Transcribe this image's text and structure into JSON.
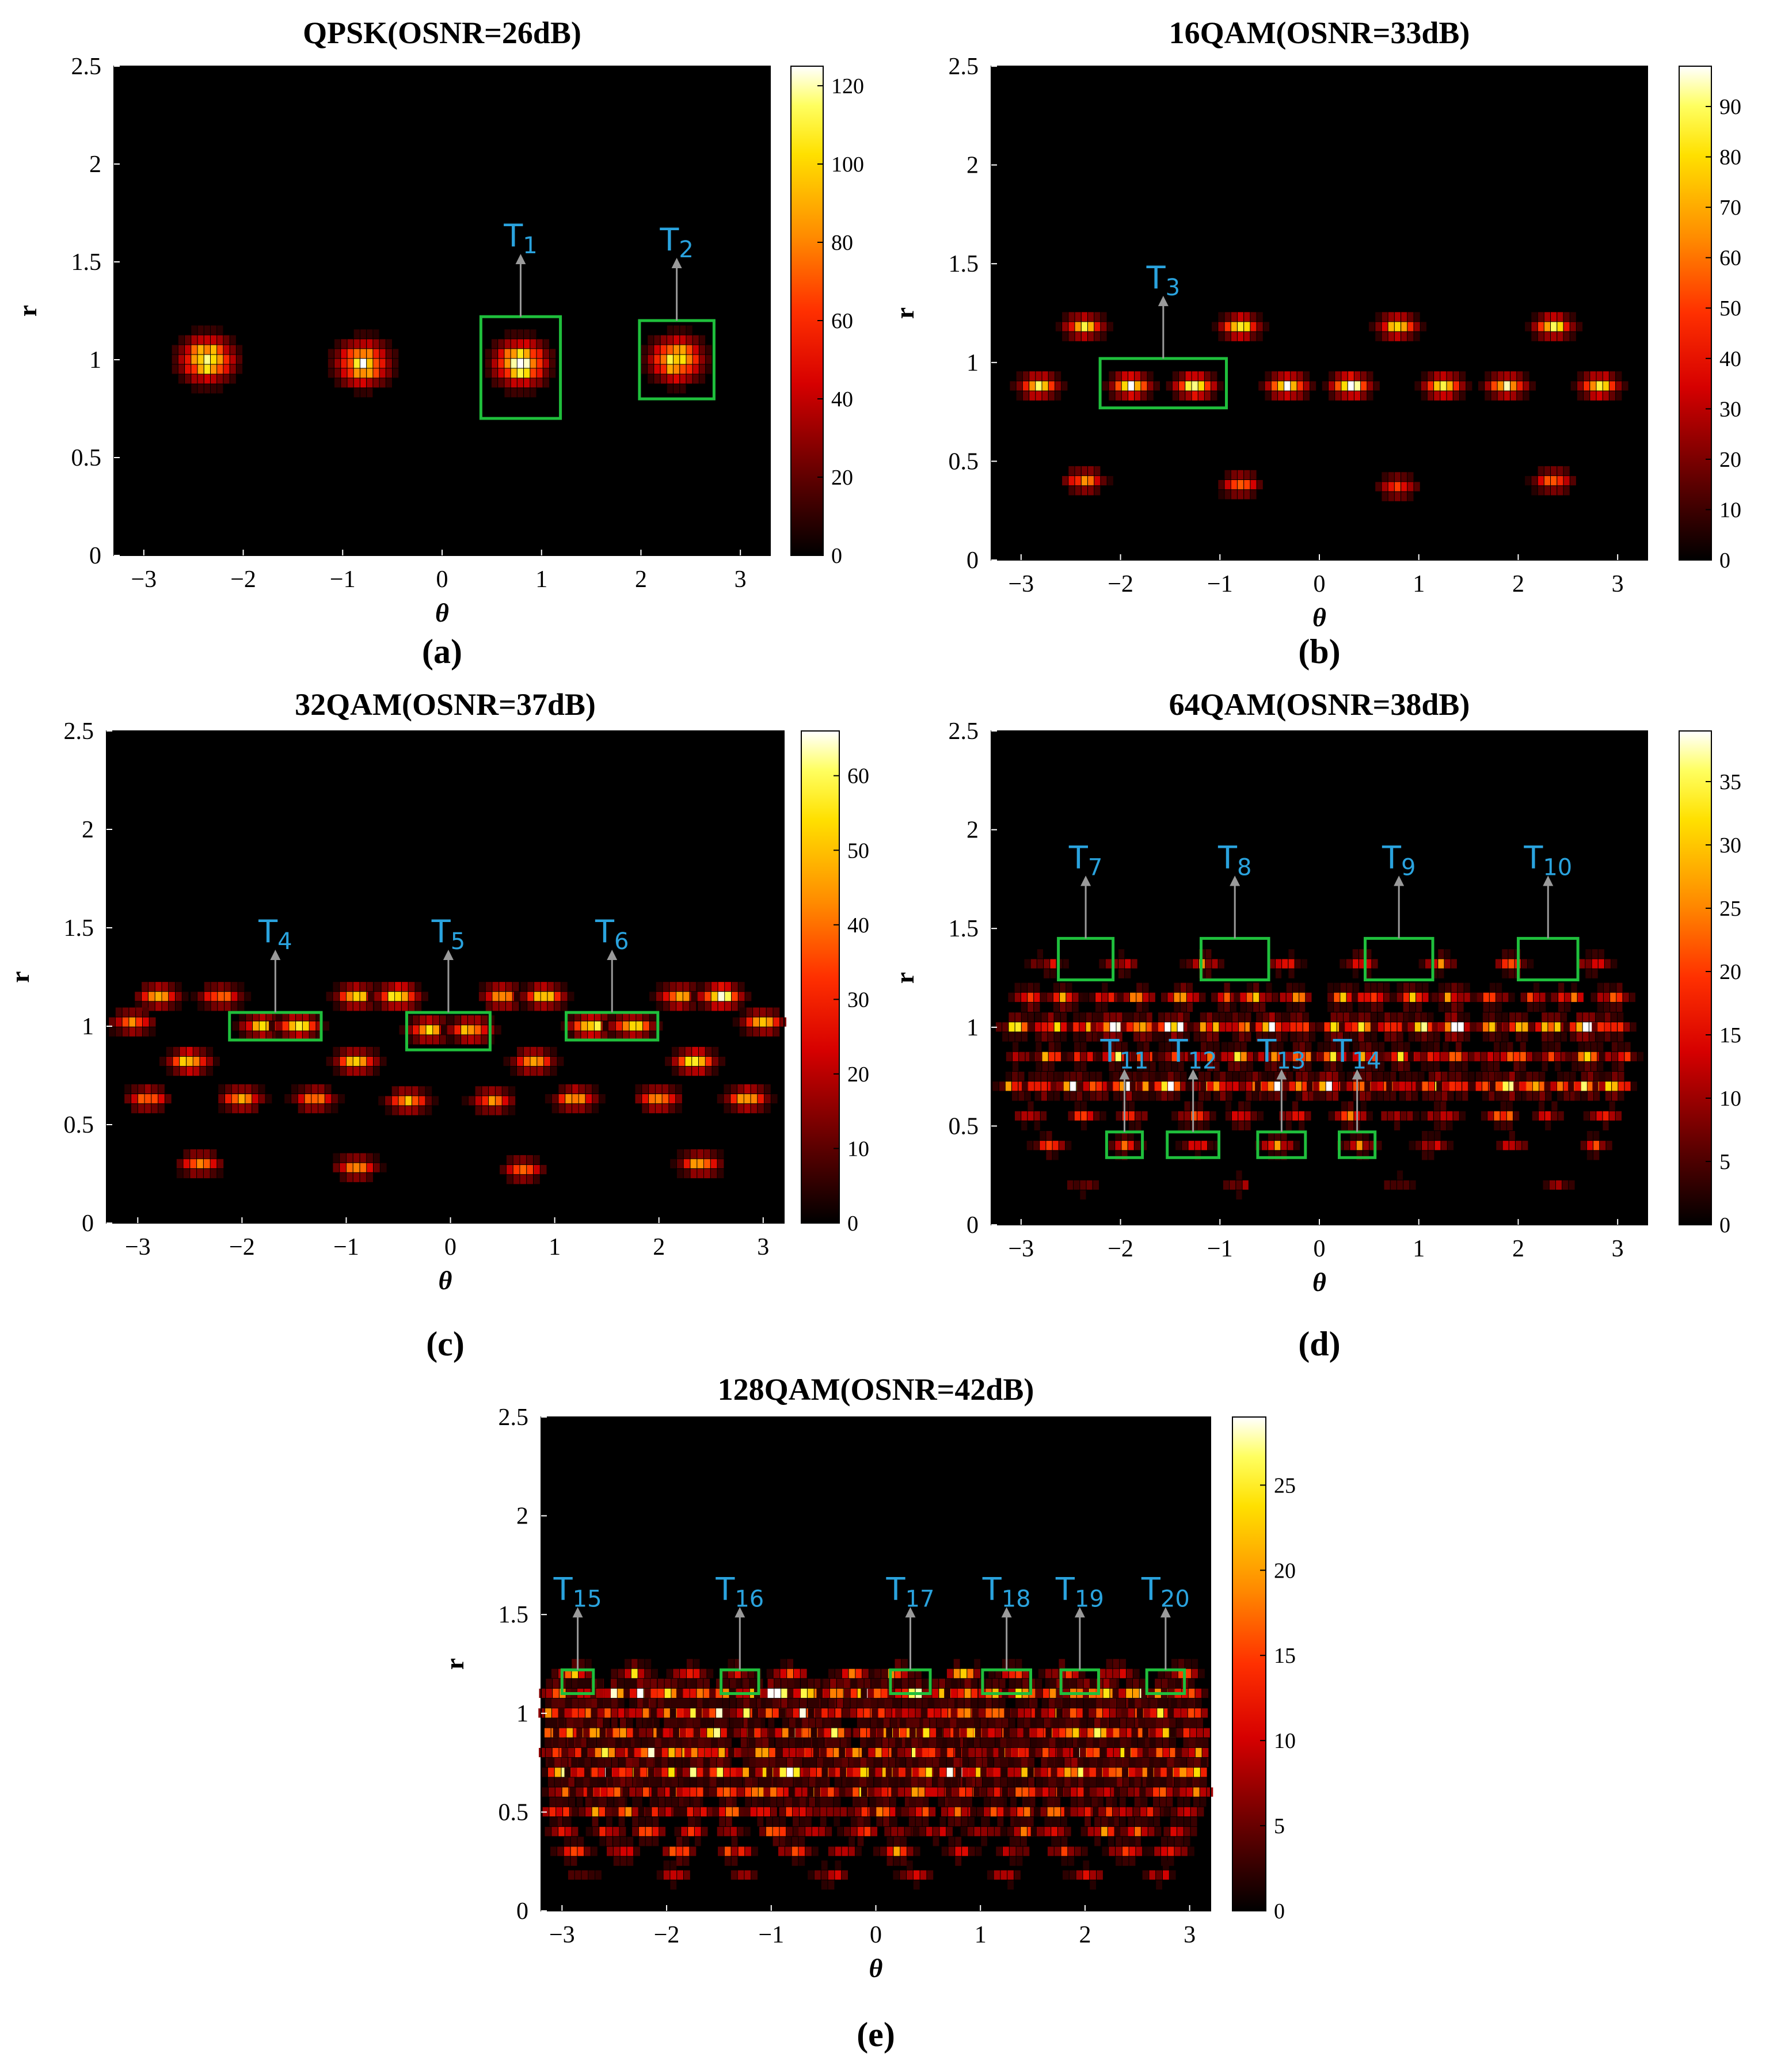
{
  "chart_data": [
    {
      "type": "heatmap",
      "panel": "(a)",
      "title": "QPSK(OSNR=26dB)",
      "xlabel": "θ",
      "ylabel": "r",
      "xticks": [
        "−3",
        "−2",
        "−1",
        "0",
        "1",
        "2",
        "3"
      ],
      "yticks": [
        "0",
        "0.5",
        "1",
        "1.5",
        "2",
        "2.5"
      ],
      "xlim": [
        -3.3,
        3.3
      ],
      "ylim": [
        0,
        2.5
      ],
      "colorbar": {
        "min": 0,
        "max": 125,
        "ticks": [
          "0",
          "20",
          "40",
          "60",
          "80",
          "100",
          "120"
        ]
      },
      "clusters": [
        {
          "theta": -2.36,
          "r": 1.0,
          "peak": 120
        },
        {
          "theta": -0.79,
          "r": 0.98,
          "peak": 110
        },
        {
          "theta": 0.79,
          "r": 0.98,
          "peak": 125
        },
        {
          "theta": 2.36,
          "r": 1.0,
          "peak": 110
        }
      ],
      "targets": [
        {
          "label": "T",
          "sub": "1",
          "theta": 0.79,
          "r_low": 0.7,
          "r_high": 1.22,
          "w": 0.8
        },
        {
          "label": "T",
          "sub": "2",
          "theta": 2.36,
          "r_low": 0.8,
          "r_high": 1.2,
          "w": 0.75
        }
      ]
    },
    {
      "type": "heatmap",
      "panel": "(b)",
      "title": "16QAM(OSNR=33dB)",
      "xlabel": "θ",
      "ylabel": "r",
      "xticks": [
        "−3",
        "−2",
        "−1",
        "0",
        "1",
        "2",
        "3"
      ],
      "yticks": [
        "0",
        "0.5",
        "1",
        "1.5",
        "2",
        "2.5"
      ],
      "xlim": [
        -3.3,
        3.3
      ],
      "ylim": [
        0,
        2.5
      ],
      "colorbar": {
        "min": 0,
        "max": 98,
        "ticks": [
          "0",
          "10",
          "20",
          "30",
          "40",
          "50",
          "60",
          "70",
          "80",
          "90"
        ]
      },
      "clusters": [
        {
          "theta": -2.36,
          "r": 1.18,
          "peak": 80
        },
        {
          "theta": -0.79,
          "r": 1.18,
          "peak": 80
        },
        {
          "theta": 0.79,
          "r": 1.18,
          "peak": 75
        },
        {
          "theta": 2.36,
          "r": 1.18,
          "peak": 80
        },
        {
          "theta": -2.82,
          "r": 0.88,
          "peak": 85
        },
        {
          "theta": -1.89,
          "r": 0.88,
          "peak": 95
        },
        {
          "theta": -1.25,
          "r": 0.88,
          "peak": 95
        },
        {
          "theta": -0.32,
          "r": 0.88,
          "peak": 95
        },
        {
          "theta": 0.32,
          "r": 0.88,
          "peak": 95
        },
        {
          "theta": 1.25,
          "r": 0.88,
          "peak": 85
        },
        {
          "theta": 1.89,
          "r": 0.88,
          "peak": 85
        },
        {
          "theta": 2.82,
          "r": 0.88,
          "peak": 85
        },
        {
          "theta": -2.36,
          "r": 0.4,
          "peak": 60
        },
        {
          "theta": -0.79,
          "r": 0.38,
          "peak": 55
        },
        {
          "theta": 0.79,
          "r": 0.37,
          "peak": 50
        },
        {
          "theta": 2.36,
          "r": 0.4,
          "peak": 55
        }
      ],
      "targets": [
        {
          "label": "T",
          "sub": "3",
          "theta": -1.57,
          "r_low": 0.77,
          "r_high": 1.02,
          "w": 1.27
        }
      ]
    },
    {
      "type": "heatmap",
      "panel": "(c)",
      "title": "32QAM(OSNR=37dB)",
      "xlabel": "θ",
      "ylabel": "r",
      "xticks": [
        "−3",
        "−2",
        "−1",
        "0",
        "1",
        "2",
        "3"
      ],
      "yticks": [
        "0",
        "0.5",
        "1",
        "1.5",
        "2",
        "2.5"
      ],
      "xlim": [
        -3.3,
        3.2
      ],
      "ylim": [
        0,
        2.5
      ],
      "colorbar": {
        "min": 0,
        "max": 66,
        "ticks": [
          "0",
          "10",
          "20",
          "30",
          "40",
          "50",
          "60"
        ]
      },
      "clusters": [
        {
          "theta": -2.8,
          "r": 1.15,
          "peak": 45
        },
        {
          "theta": -2.2,
          "r": 1.15,
          "peak": 40
        },
        {
          "theta": -0.9,
          "r": 1.15,
          "peak": 50
        },
        {
          "theta": -0.5,
          "r": 1.15,
          "peak": 60
        },
        {
          "theta": 0.5,
          "r": 1.15,
          "peak": 45
        },
        {
          "theta": 0.9,
          "r": 1.15,
          "peak": 50
        },
        {
          "theta": 2.2,
          "r": 1.15,
          "peak": 45
        },
        {
          "theta": 2.6,
          "r": 1.15,
          "peak": 65
        },
        {
          "theta": -3.05,
          "r": 1.02,
          "peak": 40
        },
        {
          "theta": -1.8,
          "r": 1.0,
          "peak": 50
        },
        {
          "theta": -1.45,
          "r": 1.0,
          "peak": 55
        },
        {
          "theta": -0.2,
          "r": 0.98,
          "peak": 50
        },
        {
          "theta": 0.2,
          "r": 0.98,
          "peak": 50
        },
        {
          "theta": 1.35,
          "r": 1.0,
          "peak": 60
        },
        {
          "theta": 1.75,
          "r": 1.0,
          "peak": 55
        },
        {
          "theta": 3.0,
          "r": 1.02,
          "peak": 45
        },
        {
          "theta": -2.5,
          "r": 0.82,
          "peak": 55
        },
        {
          "theta": -0.9,
          "r": 0.82,
          "peak": 50
        },
        {
          "theta": 0.8,
          "r": 0.82,
          "peak": 45
        },
        {
          "theta": 2.35,
          "r": 0.82,
          "peak": 55
        },
        {
          "theta": -2.9,
          "r": 0.63,
          "peak": 40
        },
        {
          "theta": -2.0,
          "r": 0.63,
          "peak": 45
        },
        {
          "theta": -1.3,
          "r": 0.63,
          "peak": 40
        },
        {
          "theta": -0.4,
          "r": 0.62,
          "peak": 45
        },
        {
          "theta": 0.4,
          "r": 0.62,
          "peak": 40
        },
        {
          "theta": 1.2,
          "r": 0.63,
          "peak": 45
        },
        {
          "theta": 2.0,
          "r": 0.63,
          "peak": 45
        },
        {
          "theta": 2.85,
          "r": 0.63,
          "peak": 50
        },
        {
          "theta": -2.4,
          "r": 0.3,
          "peak": 40
        },
        {
          "theta": -0.9,
          "r": 0.28,
          "peak": 40
        },
        {
          "theta": 0.7,
          "r": 0.27,
          "peak": 35
        },
        {
          "theta": 2.4,
          "r": 0.3,
          "peak": 45
        }
      ],
      "targets": [
        {
          "label": "T",
          "sub": "4",
          "theta": -1.68,
          "r_low": 0.93,
          "r_high": 1.07,
          "w": 0.88
        },
        {
          "label": "T",
          "sub": "5",
          "theta": -0.02,
          "r_low": 0.88,
          "r_high": 1.07,
          "w": 0.8
        },
        {
          "label": "T",
          "sub": "6",
          "theta": 1.55,
          "r_low": 0.93,
          "r_high": 1.07,
          "w": 0.88
        }
      ]
    },
    {
      "type": "heatmap",
      "panel": "(d)",
      "title": "64QAM(OSNR=38dB)",
      "xlabel": "θ",
      "ylabel": "r",
      "xticks": [
        "−3",
        "−2",
        "−1",
        "0",
        "1",
        "2",
        "3"
      ],
      "yticks": [
        "0",
        "0.5",
        "1",
        "1.5",
        "2",
        "2.5"
      ],
      "xlim": [
        -3.3,
        3.3
      ],
      "ylim": [
        0,
        2.5
      ],
      "colorbar": {
        "min": 0,
        "max": 39,
        "ticks": [
          "0",
          "5",
          "10",
          "15",
          "20",
          "25",
          "30",
          "35"
        ]
      },
      "rings": [
        {
          "r": 1.32,
          "count": 8,
          "peak": 20
        },
        {
          "r": 1.15,
          "count": 16,
          "peak": 25
        },
        {
          "r": 1.0,
          "count": 20,
          "peak": 38
        },
        {
          "r": 0.85,
          "count": 20,
          "peak": 25
        },
        {
          "r": 0.7,
          "count": 24,
          "peak": 35
        },
        {
          "r": 0.55,
          "count": 12,
          "peak": 20
        },
        {
          "r": 0.4,
          "count": 8,
          "peak": 20
        },
        {
          "r": 0.2,
          "count": 4,
          "peak": 10
        }
      ],
      "targets": [
        {
          "label": "T",
          "sub": "7",
          "theta": -2.35,
          "r_low": 1.24,
          "r_high": 1.45,
          "w": 0.55
        },
        {
          "label": "T",
          "sub": "8",
          "theta": -0.85,
          "r_low": 1.24,
          "r_high": 1.45,
          "w": 0.68
        },
        {
          "label": "T",
          "sub": "9",
          "theta": 0.8,
          "r_low": 1.24,
          "r_high": 1.45,
          "w": 0.68
        },
        {
          "label": "T",
          "sub": "10",
          "theta": 2.3,
          "r_low": 1.24,
          "r_high": 1.45,
          "w": 0.6
        },
        {
          "label": "T",
          "sub": "11",
          "theta": -1.96,
          "r_low": 0.34,
          "r_high": 0.47,
          "w": 0.36
        },
        {
          "label": "T",
          "sub": "12",
          "theta": -1.27,
          "r_low": 0.34,
          "r_high": 0.47,
          "w": 0.52
        },
        {
          "label": "T",
          "sub": "13",
          "theta": -0.38,
          "r_low": 0.34,
          "r_high": 0.47,
          "w": 0.48
        },
        {
          "label": "T",
          "sub": "14",
          "theta": 0.38,
          "r_low": 0.34,
          "r_high": 0.47,
          "w": 0.36
        }
      ]
    },
    {
      "type": "heatmap",
      "panel": "(e)",
      "title": "128QAM(OSNR=42dB)",
      "xlabel": "θ",
      "ylabel": "r",
      "xticks": [
        "−3",
        "−2",
        "−1",
        "0",
        "1",
        "2",
        "3"
      ],
      "yticks": [
        "0",
        "0.5",
        "1",
        "1.5",
        "2",
        "2.5"
      ],
      "xlim": [
        -3.2,
        3.2
      ],
      "ylim": [
        0,
        2.5
      ],
      "colorbar": {
        "min": 0,
        "max": 29,
        "ticks": [
          "0",
          "5",
          "10",
          "15",
          "20",
          "25"
        ]
      },
      "rings": [
        {
          "r": 1.2,
          "count": 12,
          "peak": 18
        },
        {
          "r": 1.1,
          "count": 24,
          "peak": 28
        },
        {
          "r": 1.0,
          "count": 24,
          "peak": 20
        },
        {
          "r": 0.9,
          "count": 28,
          "peak": 22
        },
        {
          "r": 0.8,
          "count": 28,
          "peak": 20
        },
        {
          "r": 0.7,
          "count": 28,
          "peak": 25
        },
        {
          "r": 0.6,
          "count": 24,
          "peak": 18
        },
        {
          "r": 0.5,
          "count": 20,
          "peak": 16
        },
        {
          "r": 0.4,
          "count": 16,
          "peak": 14
        },
        {
          "r": 0.3,
          "count": 12,
          "peak": 14
        },
        {
          "r": 0.18,
          "count": 8,
          "peak": 10
        }
      ],
      "targets": [
        {
          "label": "T",
          "sub": "15",
          "theta": -2.85,
          "r_low": 1.1,
          "r_high": 1.22,
          "w": 0.3
        },
        {
          "label": "T",
          "sub": "16",
          "theta": -1.3,
          "r_low": 1.1,
          "r_high": 1.22,
          "w": 0.36
        },
        {
          "label": "T",
          "sub": "17",
          "theta": 0.33,
          "r_low": 1.1,
          "r_high": 1.22,
          "w": 0.38
        },
        {
          "label": "T",
          "sub": "18",
          "theta": 1.25,
          "r_low": 1.1,
          "r_high": 1.22,
          "w": 0.46
        },
        {
          "label": "T",
          "sub": "19",
          "theta": 1.95,
          "r_low": 1.1,
          "r_high": 1.22,
          "w": 0.36
        },
        {
          "label": "T",
          "sub": "20",
          "theta": 2.77,
          "r_low": 1.1,
          "r_high": 1.22,
          "w": 0.36
        }
      ]
    }
  ]
}
